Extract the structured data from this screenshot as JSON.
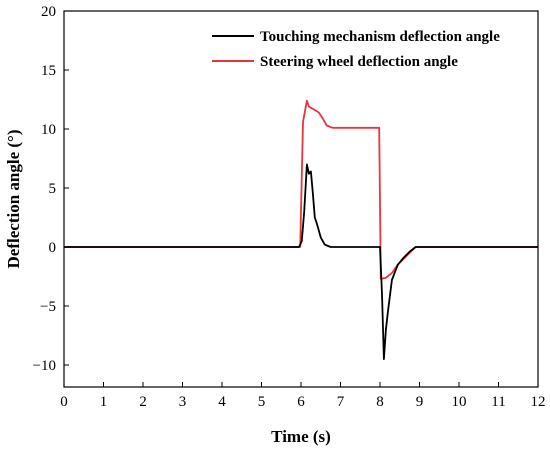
{
  "chart_data": {
    "type": "line",
    "title": "",
    "xlabel": "Time (s)",
    "ylabel": "Deflection angle (°)",
    "xlim": [
      0,
      12
    ],
    "ylim": [
      -11,
      20
    ],
    "xticks": [
      0,
      1,
      2,
      3,
      4,
      5,
      6,
      7,
      8,
      9,
      10,
      11,
      12
    ],
    "yticks": [
      -10,
      -5,
      0,
      5,
      10,
      15,
      20
    ],
    "ytick_labels": [
      "−10",
      "−5",
      "0",
      "5",
      "10",
      "15",
      "20"
    ],
    "grid": false,
    "legend_position": "top-right",
    "series": [
      {
        "name": "Touching mechanism deflection angle",
        "color": "#000000",
        "x": [
          0,
          5.95,
          6.02,
          6.08,
          6.15,
          6.2,
          6.25,
          6.3,
          6.35,
          6.4,
          6.5,
          6.6,
          6.75,
          7.0,
          7.5,
          8.0,
          8.05,
          8.1,
          8.15,
          8.2,
          8.3,
          8.45,
          8.6,
          8.75,
          8.9,
          9.5,
          12
        ],
        "y": [
          0,
          0,
          0.5,
          3,
          7,
          6.2,
          6.4,
          4.5,
          2.5,
          2,
          0.8,
          0.2,
          0,
          0,
          0,
          0,
          -4,
          -9.5,
          -7,
          -5.5,
          -2.8,
          -1.5,
          -0.9,
          -0.4,
          0,
          0,
          0
        ]
      },
      {
        "name": "Steering wheel deflection angle",
        "color": "#e8343a",
        "x": [
          0,
          5.98,
          6.05,
          6.15,
          6.2,
          6.3,
          6.45,
          6.55,
          6.65,
          6.8,
          7.0,
          7.98,
          8.02,
          8.15,
          8.3,
          8.45,
          8.6,
          8.75,
          8.9,
          9.5,
          12
        ],
        "y": [
          0,
          0,
          10.6,
          12.4,
          11.9,
          11.7,
          11.4,
          10.9,
          10.3,
          10.1,
          10.1,
          10.1,
          -2.7,
          -2.6,
          -2.2,
          -1.5,
          -1,
          -0.5,
          0,
          0,
          0
        ]
      }
    ]
  }
}
